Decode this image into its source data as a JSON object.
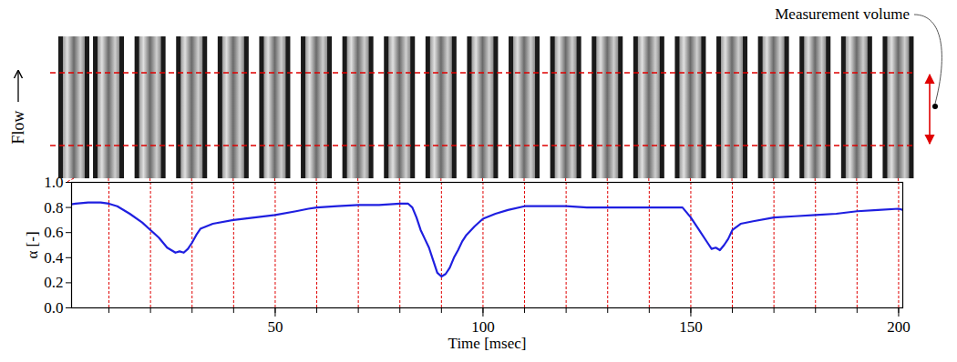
{
  "chart_data": {
    "type": "line",
    "x_label": "Time [msec]",
    "y_label": "α [-]",
    "color": "#1f1fe0",
    "annotations": {
      "flow": "Flow",
      "measurement_volume": "Measurement volume"
    },
    "frame_times": [
      0,
      10,
      20,
      30,
      40,
      50,
      60,
      70,
      80,
      90,
      100,
      110,
      120,
      130,
      140,
      150,
      160,
      170,
      180,
      190,
      200
    ],
    "x": [
      0,
      2,
      5,
      8,
      10,
      12,
      15,
      18,
      20,
      22,
      24,
      25,
      26,
      27,
      28,
      29,
      30,
      31,
      32,
      35,
      40,
      45,
      50,
      55,
      58,
      60,
      65,
      70,
      75,
      80,
      82,
      83,
      84,
      85,
      86,
      87,
      88,
      89,
      90,
      91,
      92,
      93,
      94,
      95,
      96,
      98,
      100,
      103,
      106,
      110,
      115,
      120,
      125,
      130,
      135,
      140,
      145,
      148,
      150,
      152,
      154,
      155,
      156,
      157,
      158,
      159,
      160,
      162,
      165,
      170,
      175,
      180,
      185,
      190,
      195,
      200,
      201
    ],
    "values": [
      0.82,
      0.83,
      0.84,
      0.84,
      0.83,
      0.81,
      0.75,
      0.68,
      0.62,
      0.56,
      0.48,
      0.46,
      0.44,
      0.45,
      0.44,
      0.47,
      0.52,
      0.58,
      0.63,
      0.67,
      0.7,
      0.72,
      0.74,
      0.77,
      0.79,
      0.8,
      0.81,
      0.82,
      0.82,
      0.83,
      0.83,
      0.8,
      0.72,
      0.62,
      0.55,
      0.48,
      0.38,
      0.28,
      0.25,
      0.27,
      0.32,
      0.4,
      0.46,
      0.53,
      0.58,
      0.65,
      0.71,
      0.75,
      0.78,
      0.81,
      0.81,
      0.81,
      0.8,
      0.8,
      0.8,
      0.8,
      0.8,
      0.8,
      0.72,
      0.62,
      0.52,
      0.47,
      0.48,
      0.46,
      0.5,
      0.55,
      0.62,
      0.67,
      0.69,
      0.72,
      0.73,
      0.74,
      0.75,
      0.77,
      0.78,
      0.79,
      0.78
    ],
    "xlim": [
      1,
      201
    ],
    "xticks": [
      50,
      100,
      150,
      200
    ],
    "ylim": [
      0,
      1
    ],
    "yticks": [
      0,
      0.2,
      0.4,
      0.6,
      0.8,
      1
    ]
  }
}
